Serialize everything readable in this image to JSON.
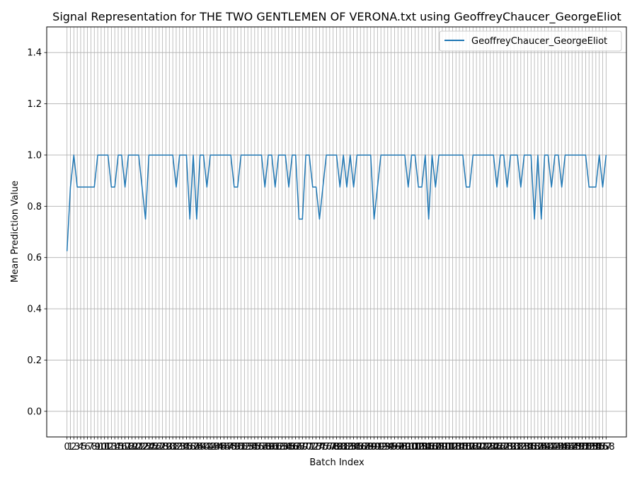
{
  "chart_data": {
    "type": "line",
    "title": "Signal Representation for THE TWO GENTLEMEN OF VERONA.txt using GeoffreyChaucer_GeorgeEliot",
    "xlabel": "Batch Index",
    "ylabel": "Mean Prediction Value",
    "xlim": [
      -5.95,
      163.95
    ],
    "ylim": [
      -0.1,
      1.5
    ],
    "yticks": [
      0.0,
      0.2,
      0.4,
      0.6,
      0.8,
      1.0,
      1.2,
      1.4
    ],
    "ytick_labels": [
      "0.0",
      "0.2",
      "0.4",
      "0.6",
      "0.8",
      "1.0",
      "1.2",
      "1.4"
    ],
    "xticks_count": 159,
    "grid": true,
    "legend_position": "top-right",
    "series": [
      {
        "name": "GeoffreyChaucer_GeorgeEliot",
        "color": "#1f77b4",
        "x": [
          0,
          1,
          2,
          3,
          4,
          5,
          6,
          7,
          8,
          9,
          10,
          11,
          12,
          13,
          14,
          15,
          16,
          17,
          18,
          19,
          20,
          21,
          22,
          23,
          24,
          25,
          26,
          27,
          28,
          29,
          30,
          31,
          32,
          33,
          34,
          35,
          36,
          37,
          38,
          39,
          40,
          41,
          42,
          43,
          44,
          45,
          46,
          47,
          48,
          49,
          50,
          51,
          52,
          53,
          54,
          55,
          56,
          57,
          58,
          59,
          60,
          61,
          62,
          63,
          64,
          65,
          66,
          67,
          68,
          69,
          70,
          71,
          72,
          73,
          74,
          75,
          76,
          77,
          78,
          79,
          80,
          81,
          82,
          83,
          84,
          85,
          86,
          87,
          88,
          89,
          90,
          91,
          92,
          93,
          94,
          95,
          96,
          97,
          98,
          99,
          100,
          101,
          102,
          103,
          104,
          105,
          106,
          107,
          108,
          109,
          110,
          111,
          112,
          113,
          114,
          115,
          116,
          117,
          118,
          119,
          120,
          121,
          122,
          123,
          124,
          125,
          126,
          127,
          128,
          129,
          130,
          131,
          132,
          133,
          134,
          135,
          136,
          137,
          138,
          139,
          140,
          141,
          142,
          143,
          144,
          145,
          146,
          147,
          148,
          149,
          150,
          151,
          152,
          153,
          154,
          155,
          156,
          157,
          158
        ],
        "values": [
          0.625,
          0.875,
          1.0,
          0.875,
          0.875,
          0.875,
          0.875,
          0.875,
          0.875,
          1.0,
          1.0,
          1.0,
          1.0,
          0.875,
          0.875,
          1.0,
          1.0,
          0.875,
          1.0,
          1.0,
          1.0,
          1.0,
          0.875,
          0.75,
          1.0,
          1.0,
          1.0,
          1.0,
          1.0,
          1.0,
          1.0,
          1.0,
          0.875,
          1.0,
          1.0,
          1.0,
          0.75,
          1.0,
          0.75,
          1.0,
          1.0,
          0.875,
          1.0,
          1.0,
          1.0,
          1.0,
          1.0,
          1.0,
          1.0,
          0.875,
          0.875,
          1.0,
          1.0,
          1.0,
          1.0,
          1.0,
          1.0,
          1.0,
          0.875,
          1.0,
          1.0,
          0.875,
          1.0,
          1.0,
          1.0,
          0.875,
          1.0,
          1.0,
          0.75,
          0.75,
          1.0,
          1.0,
          0.875,
          0.875,
          0.75,
          0.875,
          1.0,
          1.0,
          1.0,
          1.0,
          0.875,
          1.0,
          0.875,
          1.0,
          0.875,
          1.0,
          1.0,
          1.0,
          1.0,
          1.0,
          0.75,
          0.875,
          1.0,
          1.0,
          1.0,
          1.0,
          1.0,
          1.0,
          1.0,
          1.0,
          0.875,
          1.0,
          1.0,
          0.875,
          0.875,
          1.0,
          0.75,
          1.0,
          0.875,
          1.0,
          1.0,
          1.0,
          1.0,
          1.0,
          1.0,
          1.0,
          1.0,
          0.875,
          0.875,
          1.0,
          1.0,
          1.0,
          1.0,
          1.0,
          1.0,
          1.0,
          0.875,
          1.0,
          1.0,
          0.875,
          1.0,
          1.0,
          1.0,
          0.875,
          1.0,
          1.0,
          1.0,
          0.75,
          1.0,
          0.75,
          1.0,
          1.0,
          0.875,
          1.0,
          1.0,
          0.875,
          1.0,
          1.0,
          1.0,
          1.0,
          1.0,
          1.0,
          1.0,
          0.875,
          0.875,
          0.875,
          1.0,
          0.875,
          1.0
        ]
      }
    ]
  }
}
